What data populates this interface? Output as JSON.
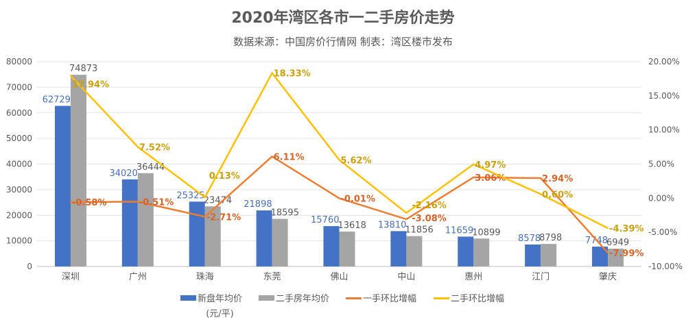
{
  "chart_data": {
    "type": "bar+line",
    "title": "2020年湾区各市一二手房价走势",
    "subtitle": "数据来源：中国房价行情网   制表：湾区楼市发布",
    "categories": [
      "深圳",
      "广州",
      "珠海",
      "东莞",
      "佛山",
      "中山",
      "惠州",
      "江门",
      "肇庆"
    ],
    "series": [
      {
        "name": "新盘年均价",
        "unit": "(元/平)",
        "type": "bar",
        "axis": "left",
        "color": "#4472C4",
        "values": [
          62729,
          34020,
          25325,
          21898,
          15760,
          13810,
          11659,
          8578,
          7748
        ]
      },
      {
        "name": "二手房年均价",
        "type": "bar",
        "axis": "left",
        "color": "#A5A5A5",
        "values": [
          74873,
          36444,
          23474,
          18595,
          13618,
          11856,
          10899,
          8798,
          6949
        ]
      },
      {
        "name": "一手环比增幅",
        "type": "line",
        "axis": "right",
        "color": "#ED7D31",
        "label_color": "#D3652A",
        "values": [
          -0.58,
          -0.51,
          -2.71,
          6.11,
          -0.01,
          -3.08,
          3.06,
          2.94,
          -7.99
        ]
      },
      {
        "name": "二手环比增幅",
        "type": "line",
        "axis": "right",
        "color": "#FFC000",
        "label_color": "#C9A013",
        "values": [
          17.94,
          7.52,
          0.13,
          18.33,
          5.62,
          -2.16,
          4.97,
          0.6,
          -4.39
        ]
      }
    ],
    "left_axis": {
      "min": 0,
      "max": 80000,
      "ticks": [
        "0",
        "10000",
        "20000",
        "30000",
        "40000",
        "50000",
        "60000",
        "70000",
        "80000"
      ]
    },
    "right_axis": {
      "min": -10,
      "max": 20,
      "ticks": [
        "-10.00%",
        "-5.00%",
        "0.00%",
        "5.00%",
        "10.00%",
        "15.00%",
        "20.00%"
      ]
    },
    "grid": true,
    "legend_position": "bottom"
  }
}
